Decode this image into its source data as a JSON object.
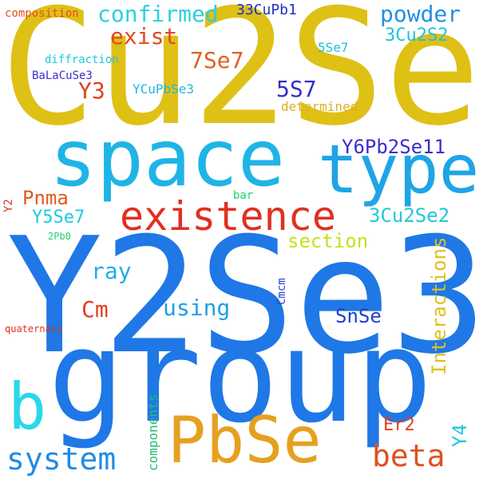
{
  "words": [
    {
      "text": "Y2Se3",
      "color": "#1f78e6"
    },
    {
      "text": "Cu2Se",
      "color": "#dfc015"
    },
    {
      "text": "group",
      "color": "#1f78e6"
    },
    {
      "text": "space",
      "color": "#1fb4e6"
    },
    {
      "text": "type",
      "color": "#1fa4e6"
    },
    {
      "text": "existence",
      "color": "#e03020"
    },
    {
      "text": "PbSe",
      "color": "#e6a020"
    },
    {
      "text": "b",
      "color": "#2ad8e8"
    },
    {
      "text": "system",
      "color": "#1f8be6"
    },
    {
      "text": "beta",
      "color": "#e05020"
    },
    {
      "text": "confirmed",
      "color": "#2ad0e0"
    },
    {
      "text": "powder",
      "color": "#1f90e6"
    },
    {
      "text": "exist",
      "color": "#e04a20"
    },
    {
      "text": "3Cu2S2",
      "color": "#20c0e0"
    },
    {
      "text": "7Se7",
      "color": "#e06020"
    },
    {
      "text": "5S7",
      "color": "#3030c8"
    },
    {
      "text": "Y3",
      "color": "#e04020"
    },
    {
      "text": "Y6Pb2Se11",
      "color": "#3a2ed0"
    },
    {
      "text": "Pnma",
      "color": "#e05a20"
    },
    {
      "text": "Y5Se7",
      "color": "#20c8e0"
    },
    {
      "text": "3Cu2Se2",
      "color": "#20c8d8"
    },
    {
      "text": "section",
      "color": "#c8e020"
    },
    {
      "text": "ray",
      "color": "#20b0e0"
    },
    {
      "text": "using",
      "color": "#1fa0e6"
    },
    {
      "text": "SnSe",
      "color": "#2040d0"
    },
    {
      "text": "Cm",
      "color": "#e04020"
    },
    {
      "text": "Er2",
      "color": "#e04020"
    },
    {
      "text": "33CuPb1",
      "color": "#2030c8"
    },
    {
      "text": "5Se7",
      "color": "#20c0e0"
    },
    {
      "text": "composition",
      "color": "#e05020"
    },
    {
      "text": "diffraction",
      "color": "#20c8e0"
    },
    {
      "text": "BaLaCuSe3",
      "color": "#3a2ed0"
    },
    {
      "text": "YCuPbSe3",
      "color": "#20b8e0"
    },
    {
      "text": "determined",
      "color": "#e0b020"
    },
    {
      "text": "bar",
      "color": "#20d070"
    },
    {
      "text": "2Pb0",
      "color": "#20d070"
    },
    {
      "text": "quaternary",
      "color": "#e03020"
    },
    {
      "text": "Interactions",
      "color": "#e0c020"
    },
    {
      "text": "Y4",
      "color": "#20c8e0"
    },
    {
      "text": "Y2",
      "color": "#e03020"
    },
    {
      "text": "Cmcm",
      "color": "#2040d0"
    },
    {
      "text": "components",
      "color": "#20c070"
    }
  ]
}
